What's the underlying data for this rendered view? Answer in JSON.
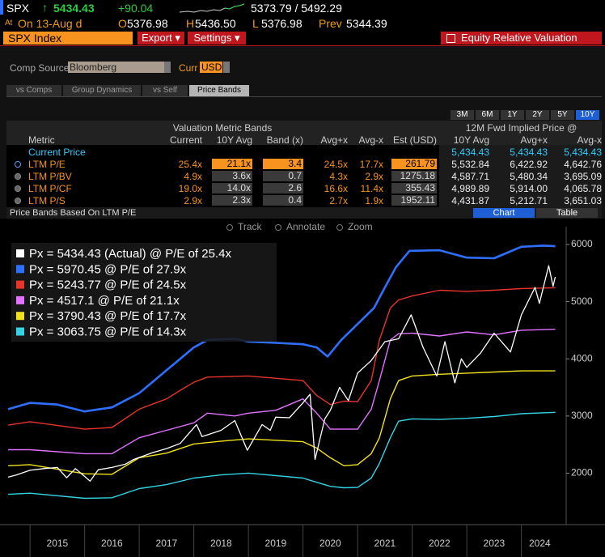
{
  "header": {
    "ticker": "SPX",
    "change_arrow": "↑",
    "last": "5434.43",
    "change": "+90.04",
    "range": "5373.79 / 5492.29",
    "at_label": "At",
    "date_label": "On 13-Aug d",
    "open_label": "O",
    "open": "5376.98",
    "high_label": "H",
    "high": "5436.50",
    "low_label": "L",
    "low": "5376.98",
    "prev_label": "Prev",
    "prev": "5344.39"
  },
  "toolbar": {
    "security": "SPX Index",
    "buttons": [
      "Export ▾",
      "Settings ▾"
    ],
    "title": "Equity Relative Valuation"
  },
  "controls": {
    "comp_source_label": "Comp Source",
    "comp_source": "Bloomberg",
    "curr_label": "Curr",
    "curr": "USD"
  },
  "tabs": [
    "vs Comps",
    "Group Dynamics",
    "vs Self",
    "Price Bands"
  ],
  "active_tab": 3,
  "periods": [
    "3M",
    "6M",
    "1Y",
    "2Y",
    "5Y",
    "10Y"
  ],
  "active_period": 5,
  "table": {
    "group_headers": [
      "Valuation Metric Bands",
      "12M Fwd Implied Price @"
    ],
    "columns": [
      "Metric",
      "Current",
      "10Y Avg",
      "Band (x)",
      "Avg+x",
      "Avg-x",
      "Est (USD)",
      "10Y Avg",
      "Avg+x",
      "Avg-x"
    ],
    "current_price": {
      "label": "Current Price",
      "values": [
        "5,434.43",
        "5,434.43",
        "5,434.43"
      ]
    },
    "rows": [
      [
        "LTM P/E",
        "25.4x",
        "21.1x",
        "3.4",
        "24.5x",
        "17.7x",
        "261.79",
        "5,532.84",
        "6,422.92",
        "4,642.76"
      ],
      [
        "LTM P/BV",
        "4.9x",
        "3.6x",
        "0.7",
        "4.3x",
        "2.9x",
        "1275.18",
        "4,587.71",
        "5,480.34",
        "3,695.09"
      ],
      [
        "LTM P/CF",
        "19.0x",
        "14.0x",
        "2.6",
        "16.6x",
        "11.4x",
        "355.43",
        "4,989.89",
        "5,914.00",
        "4,065.78"
      ],
      [
        "LTM P/S",
        "2.9x",
        "2.3x",
        "0.4",
        "2.7x",
        "1.9x",
        "1952.11",
        "4,431.87",
        "5,212.71",
        "3,651.03"
      ]
    ],
    "selected_row": 0
  },
  "subtitle_bar": {
    "title": "Price Bands Based On LTM P/E",
    "views": [
      "Chart",
      "Table"
    ],
    "active_view": 0
  },
  "chart_tools": [
    "Track",
    "Annotate",
    "Zoom"
  ],
  "chart_data": {
    "type": "line",
    "legend": "upper left",
    "y_axis_side": "right",
    "xlim": [
      2014.45,
      2024.82
    ],
    "xticks": [
      2015,
      2016,
      2017,
      2018,
      2019,
      2020,
      2021,
      2022,
      2023,
      2024
    ],
    "ylim": [
      1100,
      6170
    ],
    "yticks": [
      2000,
      3000,
      4000,
      5000,
      6000
    ],
    "series": [
      {
        "name": "Px = 5434.43 (Actual) @ P/E of 25.4x",
        "color": "#ffffff",
        "x": [
          2014.6,
          2014.75,
          2015.0,
          2015.25,
          2015.5,
          2015.67,
          2015.83,
          2016.1,
          2016.25,
          2016.5,
          2016.75,
          2016.9,
          2017.25,
          2017.5,
          2017.75,
          2018.05,
          2018.15,
          2018.5,
          2018.75,
          2018.98,
          2019.25,
          2019.4,
          2019.5,
          2019.75,
          2020.0,
          2020.13,
          2020.22,
          2020.4,
          2020.5,
          2020.67,
          2020.83,
          2021.0,
          2021.25,
          2021.5,
          2021.75,
          2021.98,
          2022.2,
          2022.45,
          2022.6,
          2022.78,
          2022.9,
          2023.0,
          2023.25,
          2023.5,
          2023.8,
          2024.0,
          2024.25,
          2024.33,
          2024.5,
          2024.58,
          2024.62
        ],
        "values": [
          1930,
          1970,
          2050,
          2080,
          2100,
          1920,
          2080,
          1860,
          2060,
          2100,
          2160,
          2240,
          2360,
          2430,
          2520,
          2850,
          2640,
          2750,
          2920,
          2400,
          2850,
          2750,
          2980,
          2970,
          3230,
          3380,
          2240,
          2950,
          3100,
          3500,
          3270,
          3750,
          3970,
          4300,
          4350,
          4770,
          4200,
          3700,
          4300,
          3580,
          4000,
          3850,
          4100,
          4450,
          4120,
          4770,
          5250,
          4970,
          5630,
          5270,
          5434
        ]
      },
      {
        "name": "Px = 5970.45 @ P/E of 27.9x",
        "color": "#2f6fff",
        "x": [
          2014.6,
          2015.0,
          2015.5,
          2016.0,
          2016.5,
          2017.0,
          2017.25,
          2017.5,
          2017.75,
          2018.0,
          2018.25,
          2018.75,
          2019.0,
          2019.5,
          2020.0,
          2020.25,
          2020.45,
          2020.7,
          2021.0,
          2021.3,
          2021.5,
          2021.7,
          2021.95,
          2022.5,
          2023.0,
          2023.5,
          2024.0,
          2024.4,
          2024.62
        ],
        "values": [
          3120,
          3230,
          3200,
          3080,
          3150,
          3400,
          3600,
          3800,
          4000,
          4200,
          4330,
          4350,
          4300,
          4280,
          4255,
          4200,
          4040,
          4330,
          4610,
          4890,
          5250,
          5600,
          5890,
          5900,
          5770,
          5760,
          5960,
          5980,
          5970
        ]
      },
      {
        "name": "Px = 5243.77 @ P/E of 24.5x",
        "color": "#e8342a",
        "x": [
          2014.6,
          2015.0,
          2016.0,
          2016.5,
          2017.0,
          2017.5,
          2017.75,
          2018.0,
          2018.25,
          2019.0,
          2020.0,
          2020.25,
          2020.5,
          2020.75,
          2021.0,
          2021.25,
          2021.4,
          2021.6,
          2021.75,
          2022.0,
          2022.5,
          2023.0,
          2023.5,
          2024.0,
          2024.62
        ],
        "values": [
          2840,
          2900,
          2770,
          2800,
          3120,
          3300,
          3450,
          3590,
          3680,
          3700,
          3620,
          3360,
          3200,
          3260,
          3250,
          3620,
          4330,
          4890,
          5030,
          5100,
          5200,
          5180,
          5200,
          5230,
          5244
        ]
      },
      {
        "name": "Px = 4517.1 @ P/E of 21.1x",
        "color": "#e272ff",
        "x": [
          2014.6,
          2015.0,
          2016.0,
          2016.5,
          2017.0,
          2017.5,
          2018.0,
          2018.25,
          2018.75,
          2019.0,
          2019.5,
          2020.0,
          2020.25,
          2020.5,
          2020.75,
          2021.0,
          2021.25,
          2021.4,
          2021.6,
          2021.75,
          2022.0,
          2022.5,
          2023.0,
          2023.5,
          2024.0,
          2024.62
        ],
        "values": [
          2410,
          2410,
          2340,
          2340,
          2620,
          2750,
          2880,
          3050,
          3000,
          3050,
          3100,
          3300,
          3050,
          2770,
          2770,
          2770,
          3120,
          3620,
          4330,
          4440,
          4450,
          4400,
          4470,
          4420,
          4500,
          4517
        ]
      },
      {
        "name": "Px = 3790.43 @ P/E of 17.7x",
        "color": "#f2e21c",
        "x": [
          2014.6,
          2015.0,
          2016.0,
          2016.5,
          2017.0,
          2017.5,
          2018.0,
          2018.5,
          2019.0,
          2020.0,
          2020.25,
          2020.5,
          2020.75,
          2021.0,
          2021.25,
          2021.4,
          2021.6,
          2021.75,
          2022.0,
          2022.5,
          2023.0,
          2023.5,
          2024.0,
          2024.62
        ],
        "values": [
          2130,
          2150,
          1990,
          1980,
          2270,
          2350,
          2510,
          2560,
          2600,
          2550,
          2440,
          2270,
          2130,
          2150,
          2340,
          2620,
          3300,
          3620,
          3700,
          3730,
          3750,
          3770,
          3790,
          3790
        ]
      },
      {
        "name": "Px = 3063.75 @ P/E of 14.3x",
        "color": "#33d3e3",
        "x": [
          2014.6,
          2015.0,
          2016.0,
          2016.5,
          2017.0,
          2017.5,
          2018.0,
          2018.5,
          2019.0,
          2020.0,
          2020.25,
          2020.5,
          2020.75,
          2021.0,
          2021.25,
          2021.4,
          2021.6,
          2021.75,
          2022.0,
          2022.5,
          2023.0,
          2023.5,
          2024.0,
          2024.62
        ],
        "values": [
          1630,
          1650,
          1560,
          1570,
          1730,
          1800,
          1915,
          1970,
          2000,
          1915,
          1840,
          1770,
          1745,
          1750,
          1915,
          2170,
          2620,
          2910,
          2950,
          2940,
          2960,
          2990,
          3040,
          3064
        ]
      }
    ]
  }
}
